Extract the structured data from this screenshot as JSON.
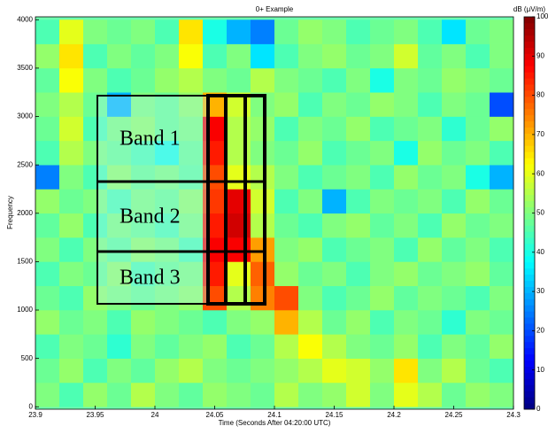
{
  "chart_data": {
    "type": "heatmap",
    "title": "0+ Example",
    "colorbar_label": "dB (μV/m)",
    "xlabel": "Time (Seconds After 04:20:00 UTC)",
    "ylabel": "Frequency",
    "colormap": "jet",
    "xlim": [
      23.9,
      24.3
    ],
    "ylim": [
      -25,
      4030
    ],
    "xticks": [
      23.9,
      23.95,
      24,
      24.05,
      24.1,
      24.15,
      24.2,
      24.25,
      24.3
    ],
    "yticks": [
      0,
      500,
      1000,
      1500,
      2000,
      2500,
      3000,
      3500,
      4000
    ],
    "clim": [
      0,
      100
    ],
    "cticks": [
      0,
      10,
      20,
      30,
      40,
      50,
      60,
      70,
      80,
      90,
      100
    ],
    "xbins": [
      23.9,
      23.92,
      23.94,
      23.96,
      23.98,
      24,
      24.02,
      24.04,
      24.06,
      24.08,
      24.1,
      24.12,
      24.14,
      24.16,
      24.18,
      24.2,
      24.22,
      24.24,
      24.26,
      24.28,
      24.3
    ],
    "ybins": [
      0,
      250,
      500,
      750,
      1000,
      1250,
      1500,
      1750,
      2000,
      2250,
      2500,
      2750,
      3000,
      3250,
      3500,
      3750,
      4000
    ],
    "z": [
      [
        50,
        45,
        52,
        48,
        55,
        50,
        47,
        52,
        50,
        48,
        55,
        50,
        52,
        58,
        50,
        60,
        55,
        48,
        52,
        50
      ],
      [
        48,
        52,
        45,
        50,
        47,
        52,
        55,
        50,
        48,
        50,
        52,
        55,
        60,
        58,
        52,
        65,
        50,
        55,
        48,
        45
      ],
      [
        45,
        50,
        48,
        42,
        50,
        47,
        50,
        52,
        45,
        48,
        55,
        62,
        55,
        50,
        48,
        52,
        45,
        50,
        47,
        52
      ],
      [
        52,
        48,
        50,
        45,
        52,
        50,
        48,
        45,
        50,
        52,
        70,
        55,
        48,
        52,
        45,
        50,
        48,
        42,
        50,
        48
      ],
      [
        48,
        45,
        52,
        50,
        48,
        50,
        52,
        80,
        55,
        75,
        80,
        50,
        45,
        48,
        52,
        47,
        50,
        48,
        45,
        50
      ],
      [
        45,
        50,
        48,
        52,
        45,
        48,
        50,
        85,
        60,
        78,
        52,
        48,
        50,
        45,
        50,
        52,
        48,
        50,
        52,
        47
      ],
      [
        50,
        45,
        50,
        47,
        52,
        50,
        45,
        88,
        88,
        72,
        50,
        52,
        45,
        48,
        50,
        45,
        52,
        47,
        50,
        45
      ],
      [
        47,
        52,
        45,
        50,
        48,
        45,
        50,
        85,
        92,
        55,
        48,
        45,
        50,
        52,
        47,
        50,
        45,
        52,
        48,
        50
      ],
      [
        52,
        48,
        50,
        45,
        50,
        48,
        52,
        82,
        90,
        58,
        45,
        50,
        30,
        45,
        50,
        48,
        50,
        45,
        52,
        48
      ],
      [
        25,
        50,
        45,
        52,
        48,
        50,
        47,
        80,
        60,
        55,
        50,
        45,
        48,
        50,
        45,
        52,
        48,
        50,
        40,
        30
      ],
      [
        45,
        55,
        50,
        48,
        45,
        40,
        48,
        85,
        55,
        50,
        48,
        52,
        45,
        48,
        50,
        40,
        52,
        48,
        50,
        45
      ],
      [
        48,
        58,
        45,
        50,
        52,
        48,
        50,
        88,
        55,
        52,
        45,
        50,
        48,
        52,
        45,
        48,
        50,
        42,
        48,
        52
      ],
      [
        50,
        55,
        48,
        30,
        50,
        48,
        52,
        70,
        58,
        50,
        52,
        45,
        50,
        48,
        52,
        50,
        45,
        50,
        48,
        20
      ],
      [
        47,
        62,
        50,
        45,
        48,
        52,
        55,
        50,
        48,
        55,
        50,
        48,
        45,
        50,
        40,
        50,
        48,
        52,
        50,
        48
      ],
      [
        52,
        65,
        45,
        50,
        47,
        50,
        62,
        45,
        50,
        35,
        45,
        50,
        52,
        48,
        50,
        58,
        47,
        50,
        45,
        50
      ],
      [
        45,
        60,
        50,
        48,
        50,
        45,
        65,
        40,
        30,
        25,
        48,
        52,
        50,
        45,
        48,
        50,
        45,
        35,
        48,
        50
      ]
    ],
    "annotations": [
      "Band 1",
      "Band 2",
      "Band 3"
    ]
  }
}
